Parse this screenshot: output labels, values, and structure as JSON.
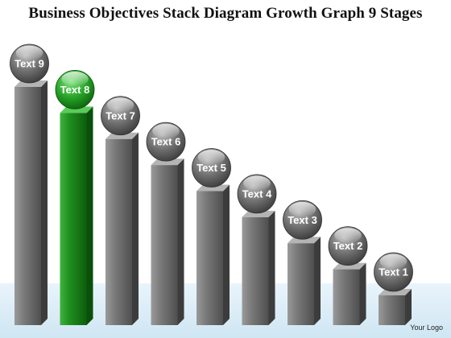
{
  "title": "Business Objectives Stack Diagram Growth Graph 9 Stages",
  "logo_text": "Your Logo",
  "highlight_color": "#2f9a2f",
  "base_color": "#808080",
  "stages": [
    {
      "label": "Text 9",
      "level": 9,
      "highlighted": false
    },
    {
      "label": "Text 8",
      "level": 8,
      "highlighted": true
    },
    {
      "label": "Text 7",
      "level": 7,
      "highlighted": false
    },
    {
      "label": "Text 6",
      "level": 6,
      "highlighted": false
    },
    {
      "label": "Text 5",
      "level": 5,
      "highlighted": false
    },
    {
      "label": "Text 4",
      "level": 4,
      "highlighted": false
    },
    {
      "label": "Text 3",
      "level": 3,
      "highlighted": false
    },
    {
      "label": "Text 2",
      "level": 2,
      "highlighted": false
    },
    {
      "label": "Text 1",
      "level": 1,
      "highlighted": false
    }
  ]
}
